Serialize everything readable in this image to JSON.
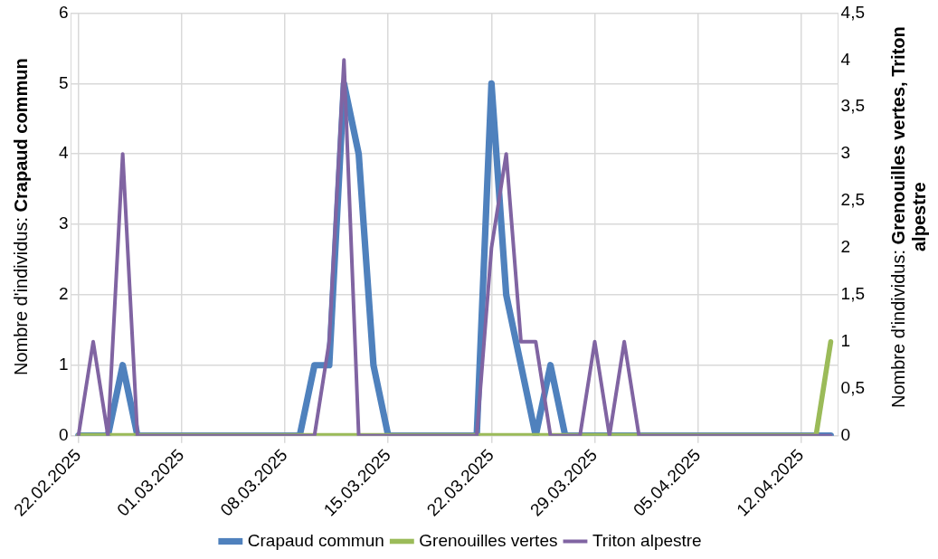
{
  "chart_data": {
    "type": "line",
    "ylabel": "Nombre d'individus: Crapaud commun",
    "y2label": "Nombre d'individus: Grenouilles vertes, Triton alpestre",
    "x": [
      "2025-02-22",
      "2025-02-23",
      "2025-02-24",
      "2025-02-25",
      "2025-02-26",
      "2025-02-27",
      "2025-02-28",
      "2025-03-01",
      "2025-03-02",
      "2025-03-03",
      "2025-03-04",
      "2025-03-05",
      "2025-03-06",
      "2025-03-07",
      "2025-03-08",
      "2025-03-09",
      "2025-03-10",
      "2025-03-11",
      "2025-03-12",
      "2025-03-13",
      "2025-03-14",
      "2025-03-15",
      "2025-03-16",
      "2025-03-17",
      "2025-03-18",
      "2025-03-19",
      "2025-03-20",
      "2025-03-21",
      "2025-03-22",
      "2025-03-23",
      "2025-03-24",
      "2025-03-25",
      "2025-03-26",
      "2025-03-27",
      "2025-03-28",
      "2025-03-29",
      "2025-03-30",
      "2025-03-31",
      "2025-04-01",
      "2025-04-02",
      "2025-04-03",
      "2025-04-04",
      "2025-04-05",
      "2025-04-06",
      "2025-04-07",
      "2025-04-08",
      "2025-04-09",
      "2025-04-10",
      "2025-04-11",
      "2025-04-12",
      "2025-04-13",
      "2025-04-14"
    ],
    "series": [
      {
        "name": "Crapaud commun",
        "color": "#4f81bd",
        "values": [
          0,
          0,
          0,
          1,
          0,
          0,
          0,
          0,
          0,
          0,
          0,
          0,
          0,
          0,
          0,
          0,
          1,
          1,
          5,
          4,
          1,
          0,
          0,
          0,
          0,
          0,
          0,
          0,
          5,
          2,
          1,
          0,
          1,
          0,
          0,
          0,
          0,
          0,
          0,
          0,
          0,
          0,
          0,
          0,
          0,
          0,
          0,
          0,
          0,
          0,
          0,
          0
        ]
      },
      {
        "name": "Grenouilles vertes",
        "color": "#9bbb59",
        "axis": "y2",
        "values": [
          0,
          0,
          0,
          0,
          0,
          0,
          0,
          0,
          0,
          0,
          0,
          0,
          0,
          0,
          0,
          0,
          0,
          0,
          0,
          0,
          0,
          0,
          0,
          0,
          0,
          0,
          0,
          0,
          0,
          0,
          0,
          0,
          0,
          0,
          0,
          0,
          0,
          0,
          0,
          0,
          0,
          0,
          0,
          0,
          0,
          0,
          0,
          0,
          0,
          0,
          0,
          1
        ]
      },
      {
        "name": "Triton alpestre",
        "color": "#8064a2",
        "axis": "y2",
        "values": [
          0,
          1,
          0,
          3,
          0,
          0,
          0,
          0,
          0,
          0,
          0,
          0,
          0,
          0,
          0,
          0,
          0,
          1,
          4,
          0,
          0,
          0,
          0,
          0,
          0,
          0,
          0,
          0,
          2,
          3,
          1,
          1,
          0,
          0,
          0,
          1,
          0,
          1,
          0,
          0,
          0,
          0,
          0,
          0,
          0,
          0,
          0,
          0,
          0,
          0,
          0,
          0
        ]
      }
    ],
    "xlim": [
      "2025-02-21T12:00",
      "2025-04-14T12:00"
    ],
    "xticks": [
      {
        "value": "2025-02-22",
        "label": "22.02.2025"
      },
      {
        "value": "2025-03-01",
        "label": "01.03.2025"
      },
      {
        "value": "2025-03-08",
        "label": "08.03.2025"
      },
      {
        "value": "2025-03-15",
        "label": "15.03.2025"
      },
      {
        "value": "2025-03-22",
        "label": "22.03.2025"
      },
      {
        "value": "2025-03-29",
        "label": "29.03.2025"
      },
      {
        "value": "2025-04-05",
        "label": "05.04.2025"
      },
      {
        "value": "2025-04-12",
        "label": "12.04.2025"
      }
    ],
    "ylim": [
      0,
      6
    ],
    "yticks": [
      0,
      1,
      2,
      3,
      4,
      5,
      6
    ],
    "y2lim": [
      0,
      4.5
    ],
    "y2ticks": [
      0,
      {
        "value": 0.5,
        "label": "0,5"
      },
      1,
      {
        "value": 1.5,
        "label": "1,5"
      },
      2,
      {
        "value": 2.5,
        "label": "2,5"
      },
      3,
      {
        "value": 3.5,
        "label": "3,5"
      },
      4,
      {
        "value": 4.5,
        "label": "4,5"
      }
    ],
    "grid": true,
    "legend": "bottom",
    "marker": "none",
    "line_style": "solid"
  }
}
